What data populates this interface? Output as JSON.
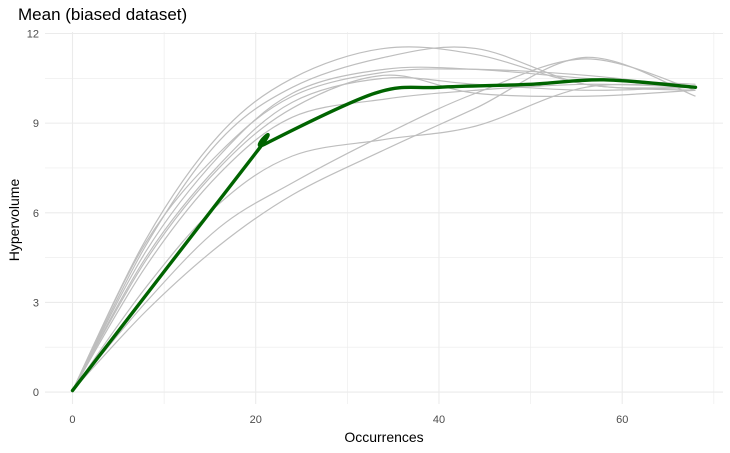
{
  "chart_data": {
    "type": "line",
    "title": "Mean (biased dataset)",
    "xlabel": "Occurrences",
    "ylabel": "Hypervolume",
    "xlim": [
      -3,
      71
    ],
    "ylim": [
      -0.4,
      12.05
    ],
    "xticks": [
      0,
      20,
      40,
      60
    ],
    "yticks": [
      0,
      3,
      6,
      9,
      12
    ],
    "grid": true,
    "legend": "none",
    "colors": {
      "mean": "#006400",
      "runs": "#bebebe",
      "grid": "#ebebeb"
    },
    "series": [
      {
        "role": "mean",
        "x": [
          0,
          20,
          21,
          33,
          40,
          50,
          58,
          68
        ],
        "y": [
          0.05,
          8.0,
          8.3,
          10.0,
          10.2,
          10.3,
          10.45,
          10.2
        ]
      },
      {
        "role": "run",
        "x": [
          0,
          8,
          16,
          24,
          34,
          44,
          56,
          68
        ],
        "y": [
          0.05,
          5.1,
          8.6,
          10.5,
          11.5,
          11.3,
          10.3,
          10.1
        ]
      },
      {
        "role": "run",
        "x": [
          0,
          8,
          16,
          24,
          34,
          44,
          56,
          68
        ],
        "y": [
          0.05,
          5.0,
          8.0,
          9.9,
          10.7,
          10.8,
          10.6,
          10.2
        ]
      },
      {
        "role": "run",
        "x": [
          0,
          8,
          16,
          24,
          34,
          44,
          56,
          68
        ],
        "y": [
          0.05,
          4.7,
          7.9,
          10.0,
          10.8,
          10.8,
          10.5,
          10.3
        ]
      },
      {
        "role": "run",
        "x": [
          0,
          8,
          16,
          24,
          34,
          44,
          56,
          68
        ],
        "y": [
          0.05,
          4.5,
          7.6,
          9.7,
          10.5,
          10.3,
          10.1,
          10.2
        ]
      },
      {
        "role": "run",
        "x": [
          0,
          8,
          16,
          24,
          34,
          44,
          56,
          68
        ],
        "y": [
          0.05,
          4.4,
          7.5,
          9.5,
          10.6,
          10.0,
          9.9,
          10.1
        ]
      },
      {
        "role": "run",
        "x": [
          0,
          8,
          16,
          24,
          34,
          44,
          56,
          68
        ],
        "y": [
          0.05,
          4.2,
          7.3,
          9.2,
          9.8,
          10.1,
          10.3,
          10.2
        ]
      },
      {
        "role": "run",
        "x": [
          0,
          8,
          16,
          24,
          34,
          44,
          56,
          68
        ],
        "y": [
          0.05,
          3.5,
          6.3,
          7.9,
          8.45,
          8.9,
          10.2,
          10.2
        ]
      },
      {
        "role": "run",
        "x": [
          0,
          8,
          16,
          24,
          34,
          44,
          56,
          68
        ],
        "y": [
          0.05,
          3.0,
          5.5,
          7.0,
          8.6,
          10.0,
          11.15,
          10.1
        ]
      },
      {
        "role": "run",
        "x": [
          0,
          8,
          16,
          24,
          34,
          44,
          56,
          68
        ],
        "y": [
          0.05,
          2.7,
          4.9,
          6.6,
          8.1,
          9.5,
          11.2,
          9.9
        ]
      },
      {
        "role": "run",
        "x": [
          0,
          8,
          16,
          24,
          34,
          44,
          56,
          68
        ],
        "y": [
          0.05,
          4.9,
          8.4,
          10.2,
          11.2,
          11.5,
          10.3,
          10.2
        ]
      }
    ]
  }
}
